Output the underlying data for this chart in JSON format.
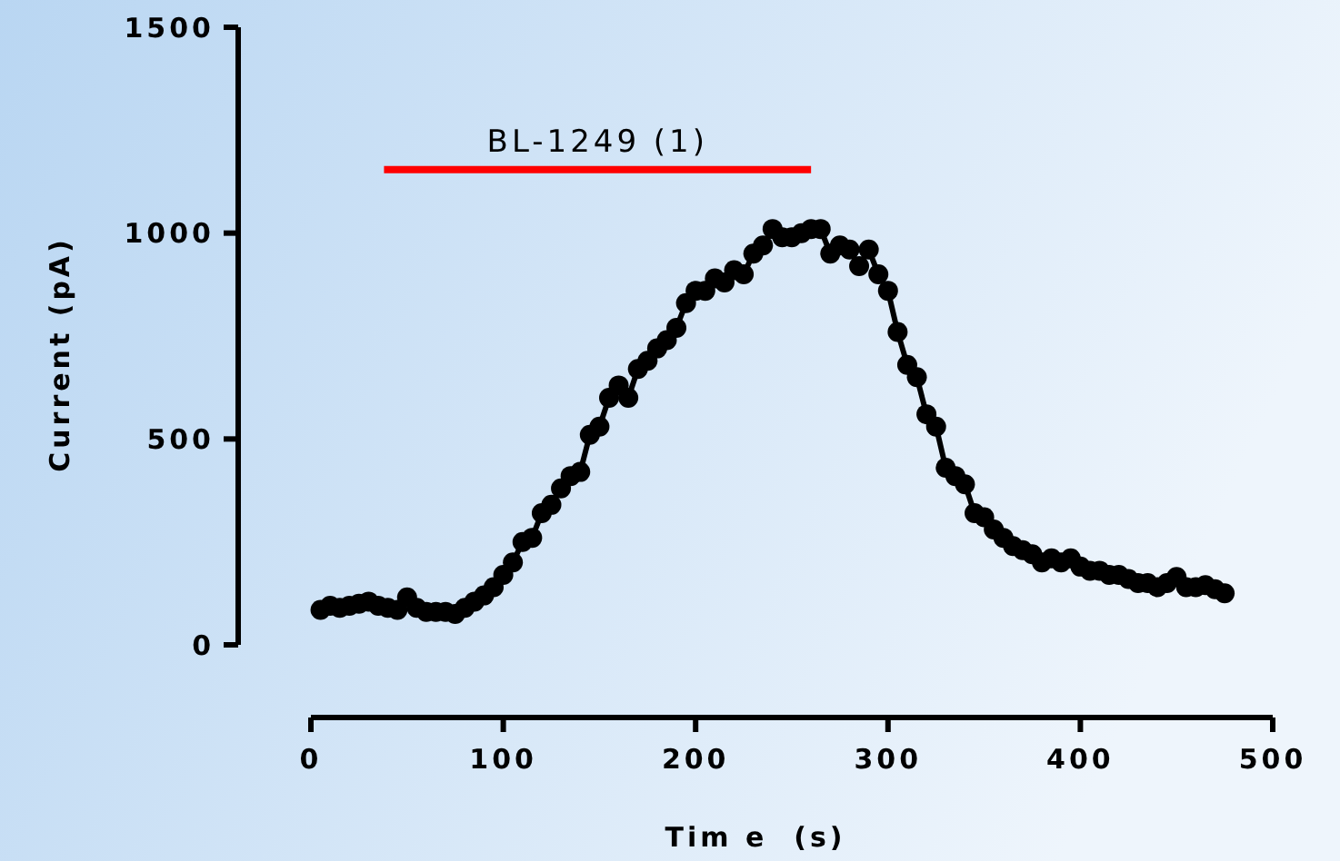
{
  "chart_data": {
    "type": "line",
    "xlabel": "Tim e  (s)",
    "ylabel": "Current (pA)",
    "xlim": [
      0,
      500
    ],
    "xticks": [
      0,
      100,
      200,
      300,
      400,
      500
    ],
    "ylim": [
      0,
      1500
    ],
    "yticks": [
      0,
      500,
      1000,
      1500
    ],
    "marker": "circle",
    "line_style": "solid",
    "grid": false,
    "series": [
      {
        "name": "BL-1249 (1)",
        "color": "#ff0000",
        "x": [
          38,
          260
        ],
        "values": [
          1154,
          1154
        ],
        "marker": "none"
      },
      {
        "color": "#000000",
        "x": [
          5,
          10,
          15,
          20,
          25,
          30,
          35,
          40,
          45,
          50,
          55,
          60,
          65,
          70,
          75,
          80,
          85,
          90,
          95,
          100,
          105,
          110,
          115,
          120,
          125,
          130,
          135,
          140,
          145,
          150,
          155,
          160,
          165,
          170,
          175,
          180,
          185,
          190,
          195,
          200,
          205,
          210,
          215,
          220,
          225,
          230,
          235,
          240,
          245,
          250,
          255,
          260,
          265,
          270,
          275,
          280,
          285,
          290,
          295,
          300,
          305,
          310,
          315,
          320,
          325,
          330,
          335,
          340,
          345,
          350,
          355,
          360,
          365,
          370,
          375,
          380,
          385,
          390,
          395,
          400,
          405,
          410,
          415,
          420,
          425,
          430,
          435,
          440,
          445,
          450,
          455,
          460,
          465,
          470,
          475
        ],
        "values": [
          85,
          95,
          90,
          95,
          100,
          105,
          95,
          90,
          85,
          115,
          90,
          80,
          80,
          80,
          75,
          90,
          105,
          120,
          140,
          170,
          200,
          250,
          260,
          320,
          340,
          380,
          410,
          420,
          510,
          530,
          600,
          630,
          600,
          670,
          690,
          720,
          740,
          770,
          830,
          860,
          860,
          890,
          880,
          910,
          900,
          950,
          970,
          1010,
          990,
          990,
          1000,
          1010,
          1010,
          950,
          970,
          960,
          920,
          960,
          900,
          860,
          760,
          680,
          650,
          560,
          530,
          430,
          410,
          390,
          320,
          310,
          280,
          260,
          240,
          230,
          220,
          200,
          210,
          200,
          210,
          190,
          180,
          180,
          170,
          170,
          160,
          150,
          150,
          140,
          150,
          165,
          140,
          140,
          145,
          135,
          125
        ]
      }
    ]
  }
}
